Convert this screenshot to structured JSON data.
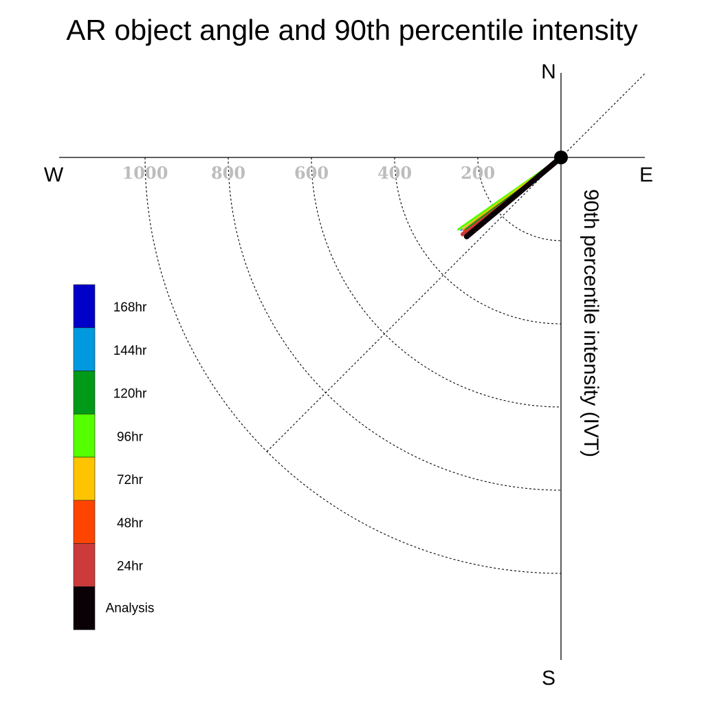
{
  "chart_data": {
    "type": "polar-vector",
    "title": "AR object angle and 90th percentile intensity",
    "ylabel": "90th percentile intensity (IVT)",
    "directions": {
      "north": "N",
      "south": "S",
      "east": "E",
      "west": "W"
    },
    "radial_ticks": [
      200,
      400,
      600,
      800,
      1000
    ],
    "rlim": [
      0,
      1000
    ],
    "legend_placement": "left",
    "series": [
      {
        "name": "168hr",
        "color": "#0000c8",
        "angle_deg": 216,
        "intensity": 296
      },
      {
        "name": "144hr",
        "color": "#0099e0",
        "angle_deg": 216,
        "intensity": 298
      },
      {
        "name": "120hr",
        "color": "#009a18",
        "angle_deg": 217,
        "intensity": 288
      },
      {
        "name": "96hr",
        "color": "#55ff00",
        "angle_deg": 215,
        "intensity": 302
      },
      {
        "name": "72hr",
        "color": "#ffc400",
        "angle_deg": 216,
        "intensity": 292
      },
      {
        "name": "48hr",
        "color": "#ff4400",
        "angle_deg": 217,
        "intensity": 292
      },
      {
        "name": "24hr",
        "color": "#cc3a3a",
        "angle_deg": 218,
        "intensity": 300
      },
      {
        "name": "Analysis",
        "color": "#0a0006",
        "angle_deg": 220,
        "intensity": 296
      }
    ]
  }
}
